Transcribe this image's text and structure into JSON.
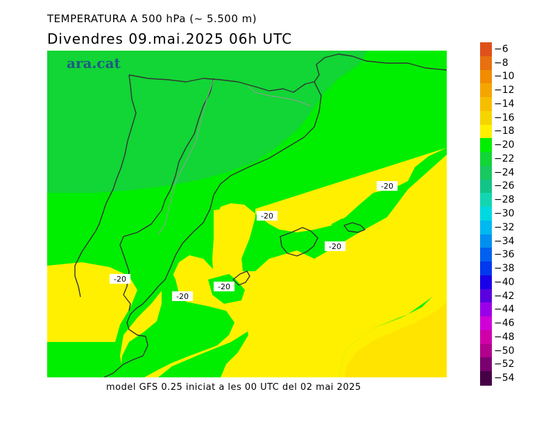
{
  "title_line1": "TEMPERATURA A 500 hPa (~ 5.500 m)",
  "title_line2": "Divendres  09.mai.2025 06h UTC",
  "footer": "model GFS 0.25 iniciat a les 00 UTC del 02 mai 2025",
  "logo": "ara.cat",
  "contour_label": "-20",
  "colorbar": {
    "levels": [
      "-6",
      "-8",
      "-10",
      "-12",
      "-14",
      "-16",
      "-18",
      "-20",
      "-22",
      "-24",
      "-26",
      "-28",
      "-30",
      "-32",
      "-34",
      "-36",
      "-38",
      "-40",
      "-42",
      "-44",
      "-46",
      "-48",
      "-50",
      "-52",
      "-54"
    ],
    "colors": [
      "#e0501b",
      "#e8700f",
      "#f08c00",
      "#f5a500",
      "#f7be00",
      "#f5d500",
      "#fff000",
      "#00ee00",
      "#12d536",
      "#18c860",
      "#13c488",
      "#12d6b2",
      "#00d8e0",
      "#00b8f0",
      "#0090f0",
      "#0060f0",
      "#0038ee",
      "#1a00e8",
      "#5a00e0",
      "#9a00e8",
      "#d000d8",
      "#d000a8",
      "#b0008c",
      "#7a0070",
      "#460046"
    ]
  }
}
